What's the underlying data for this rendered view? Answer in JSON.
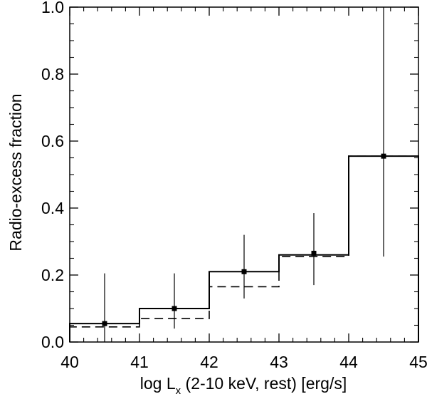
{
  "chart_data": {
    "type": "bar",
    "style": "step-histogram",
    "xlabel": "log L",
    "xlabel_sub": "x",
    "xlabel_rest": " (2-10 keV, rest) [erg/s]",
    "ylabel": "Radio-excess fraction",
    "xlim": [
      40,
      45
    ],
    "ylim": [
      0,
      1.0
    ],
    "xticks": [
      40,
      41,
      42,
      43,
      44,
      45
    ],
    "xtick_labels": [
      "40",
      "41",
      "42",
      "43",
      "44",
      "45"
    ],
    "yticks": [
      0.0,
      0.2,
      0.4,
      0.6,
      0.8,
      1.0
    ],
    "ytick_labels": [
      "0.0",
      "0.2",
      "0.4",
      "0.6",
      "0.8",
      "1.0"
    ],
    "bin_edges": [
      40,
      41,
      42,
      43,
      44,
      45
    ],
    "series": [
      {
        "line": "solid",
        "values": [
          0.055,
          0.1,
          0.21,
          0.26,
          0.555
        ]
      },
      {
        "line": "dashed",
        "values": [
          0.045,
          0.07,
          0.165,
          0.255,
          0.555
        ]
      }
    ],
    "points": {
      "x": [
        40.5,
        41.5,
        42.5,
        43.5,
        44.5
      ],
      "y": [
        0.055,
        0.1,
        0.21,
        0.265,
        0.555
      ],
      "err_low": [
        0.0,
        0.04,
        0.13,
        0.17,
        0.255
      ],
      "err_high": [
        0.205,
        0.205,
        0.32,
        0.385,
        1.0
      ]
    },
    "grid": false,
    "colors": {
      "line": "#000000",
      "background": "#ffffff"
    }
  }
}
